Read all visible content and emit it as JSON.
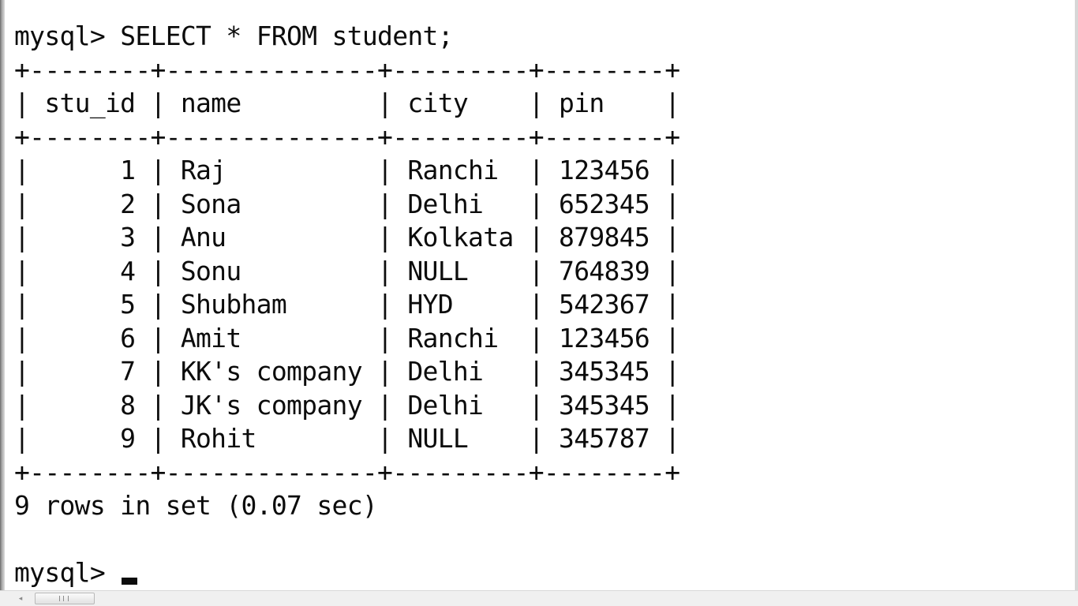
{
  "terminal": {
    "prompt": "mysql> ",
    "command": "SELECT * FROM student;",
    "border": "+--------+--------------+---------+--------+",
    "header_row": "| stu_id | name         | city    | pin    |",
    "rows": [
      "|      1 | Raj          | Ranchi  | 123456 |",
      "|      2 | Sona         | Delhi   | 652345 |",
      "|      3 | Anu          | Kolkata | 879845 |",
      "|      4 | Sonu         | NULL    | 764839 |",
      "|      5 | Shubham      | HYD     | 542367 |",
      "|      6 | Amit         | Ranchi  | 123456 |",
      "|      7 | KK's company | Delhi   | 345345 |",
      "|      8 | JK's company | Delhi   | 345345 |",
      "|      9 | Rohit        | NULL    | 345787 |"
    ],
    "result_summary": "9 rows in set (0.07 sec)",
    "next_prompt": "mysql> "
  },
  "scrollbar": {
    "left_arrow_icon": "scroll-left-arrow-icon",
    "left_arrow_glyph": "◂"
  }
}
